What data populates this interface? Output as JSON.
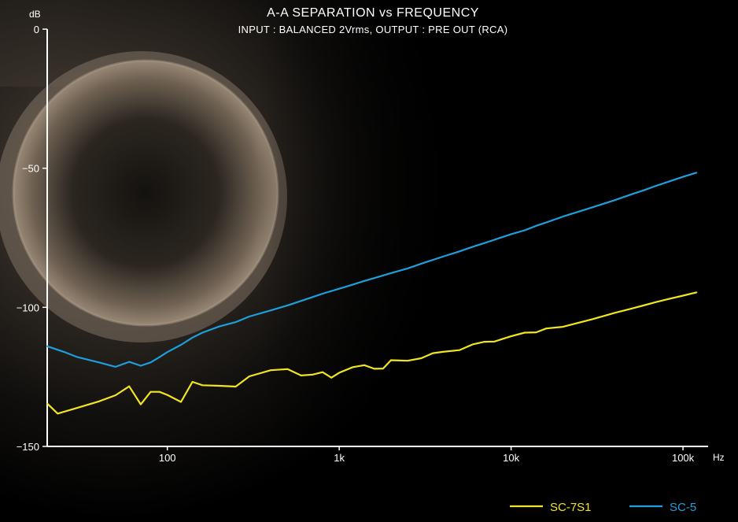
{
  "chart_data": {
    "type": "line",
    "title": "A-A SEPARATION vs FREQUENCY",
    "subtitle": "INPUT : BALANCED 2Vrms, OUTPUT : PRE OUT (RCA)",
    "ylabel": "dB",
    "xlabel": "Hz",
    "x_scale": "log",
    "xlim": [
      20,
      140000
    ],
    "ylim": [
      -150,
      0
    ],
    "y_ticks": [
      {
        "value": 0,
        "label": "0"
      },
      {
        "value": -50,
        "label": "−50"
      },
      {
        "value": -100,
        "label": "−100"
      },
      {
        "value": -150,
        "label": "−150"
      }
    ],
    "x_ticks": [
      {
        "value": 100,
        "label": "100"
      },
      {
        "value": 1000,
        "label": "1k"
      },
      {
        "value": 10000,
        "label": "10k"
      },
      {
        "value": 100000,
        "label": "100k"
      }
    ],
    "grid": false,
    "legend_position": "bottom-right",
    "series": [
      {
        "name": "SC-7S1",
        "color": "#f2e51f",
        "points": [
          [
            20,
            -134.6
          ],
          [
            23,
            -138.2
          ],
          [
            30,
            -136.1
          ],
          [
            40,
            -133.8
          ],
          [
            50,
            -131.6
          ],
          [
            60,
            -128.4
          ],
          [
            70,
            -134.9
          ],
          [
            80,
            -130.4
          ],
          [
            90,
            -130.4
          ],
          [
            100,
            -131.5
          ],
          [
            120,
            -134.0
          ],
          [
            140,
            -126.8
          ],
          [
            160,
            -128.0
          ],
          [
            200,
            -128.2
          ],
          [
            250,
            -128.5
          ],
          [
            300,
            -124.8
          ],
          [
            400,
            -122.6
          ],
          [
            500,
            -122.2
          ],
          [
            600,
            -124.5
          ],
          [
            700,
            -124.2
          ],
          [
            800,
            -123.3
          ],
          [
            900,
            -125.3
          ],
          [
            1000,
            -123.5
          ],
          [
            1200,
            -121.5
          ],
          [
            1400,
            -120.8
          ],
          [
            1600,
            -122.1
          ],
          [
            1800,
            -122.0
          ],
          [
            2000,
            -119.0
          ],
          [
            2500,
            -119.2
          ],
          [
            3000,
            -118.3
          ],
          [
            3500,
            -116.5
          ],
          [
            4000,
            -116.0
          ],
          [
            5000,
            -115.4
          ],
          [
            6000,
            -113.3
          ],
          [
            7000,
            -112.4
          ],
          [
            8000,
            -112.3
          ],
          [
            10000,
            -110.4
          ],
          [
            12000,
            -109.1
          ],
          [
            14000,
            -109.0
          ],
          [
            16000,
            -107.6
          ],
          [
            20000,
            -107.0
          ],
          [
            30000,
            -104.2
          ],
          [
            40000,
            -102.0
          ],
          [
            50000,
            -100.5
          ],
          [
            60000,
            -99.2
          ],
          [
            70000,
            -98.1
          ],
          [
            80000,
            -97.2
          ],
          [
            100000,
            -95.8
          ],
          [
            120000,
            -94.6
          ]
        ]
      },
      {
        "name": "SC-5",
        "color": "#1e9fdc",
        "points": [
          [
            20,
            -114.0
          ],
          [
            25,
            -116.0
          ],
          [
            30,
            -117.9
          ],
          [
            40,
            -119.8
          ],
          [
            50,
            -121.4
          ],
          [
            60,
            -119.6
          ],
          [
            70,
            -121.0
          ],
          [
            80,
            -119.8
          ],
          [
            90,
            -117.9
          ],
          [
            100,
            -116.1
          ],
          [
            120,
            -113.5
          ],
          [
            140,
            -110.9
          ],
          [
            160,
            -109.1
          ],
          [
            200,
            -106.9
          ],
          [
            250,
            -105.3
          ],
          [
            300,
            -103.3
          ],
          [
            400,
            -101.1
          ],
          [
            500,
            -99.3
          ],
          [
            600,
            -97.7
          ],
          [
            700,
            -96.3
          ],
          [
            800,
            -95.1
          ],
          [
            1000,
            -93.3
          ],
          [
            1200,
            -91.8
          ],
          [
            1400,
            -90.5
          ],
          [
            1600,
            -89.5
          ],
          [
            2000,
            -87.7
          ],
          [
            2500,
            -86.0
          ],
          [
            3000,
            -84.3
          ],
          [
            4000,
            -81.8
          ],
          [
            5000,
            -79.9
          ],
          [
            6000,
            -78.2
          ],
          [
            7000,
            -76.9
          ],
          [
            8000,
            -75.7
          ],
          [
            10000,
            -73.7
          ],
          [
            12000,
            -72.3
          ],
          [
            14000,
            -70.7
          ],
          [
            16000,
            -69.5
          ],
          [
            20000,
            -67.4
          ],
          [
            30000,
            -64.0
          ],
          [
            40000,
            -61.5
          ],
          [
            50000,
            -59.4
          ],
          [
            60000,
            -57.8
          ],
          [
            70000,
            -56.3
          ],
          [
            80000,
            -55.1
          ],
          [
            100000,
            -53.1
          ],
          [
            120000,
            -51.6
          ]
        ]
      }
    ]
  }
}
